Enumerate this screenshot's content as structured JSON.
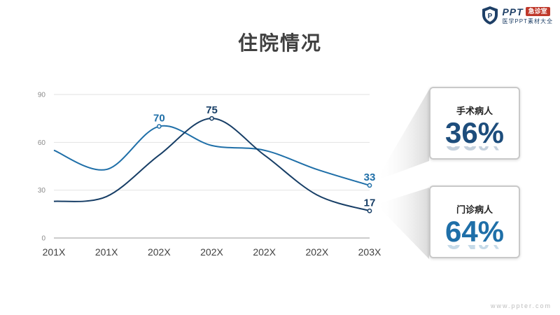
{
  "header": {
    "logo_text": "PPT",
    "logo_badge": "急诊室",
    "logo_subtitle": "医学PPT素材大全"
  },
  "title": "住院情况",
  "chart_data": {
    "type": "line",
    "categories": [
      "201X",
      "201X",
      "202X",
      "202X",
      "202X",
      "202X",
      "203X"
    ],
    "ylim": [
      0,
      90
    ],
    "yticks": [
      0,
      30,
      60,
      90
    ],
    "grid": true,
    "series": [
      {
        "values": [
          55,
          43,
          70,
          58,
          55,
          43,
          33
        ],
        "color": "#1f6fa8",
        "labeled_points": [
          {
            "index": 2,
            "label": "70"
          },
          {
            "index": 6,
            "label": "33"
          }
        ]
      },
      {
        "values": [
          23,
          26,
          52,
          75,
          52,
          27,
          17
        ],
        "color": "#173e66",
        "labeled_points": [
          {
            "index": 3,
            "label": "75"
          },
          {
            "index": 6,
            "label": "17"
          }
        ]
      }
    ]
  },
  "cards": [
    {
      "label": "手术病人",
      "value": "36%",
      "color": "#1d4d7c"
    },
    {
      "label": "门诊病人",
      "value": "64%",
      "color": "#1f6fa8"
    }
  ],
  "footer": "www.ppter.com"
}
